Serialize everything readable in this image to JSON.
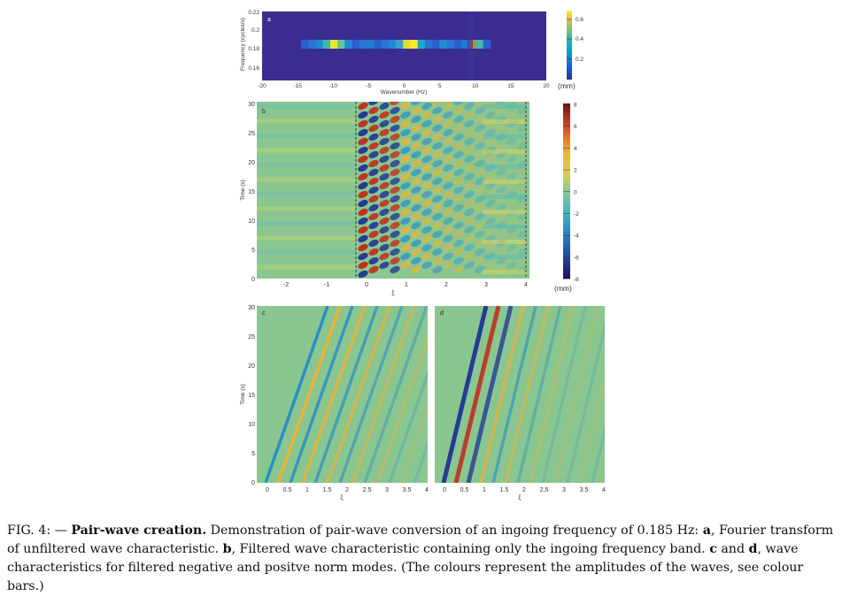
{
  "figure": {
    "panels": {
      "a": {
        "label": "a",
        "ylabel": "Frequency (cycles/s)",
        "xlabel": "Wavenumber (Hz)",
        "xticks": [
          "-20",
          "-15",
          "-10",
          "-5",
          "0",
          "5",
          "10",
          "15",
          "20"
        ],
        "yticks": [
          "0.22",
          "0.2",
          "0.18",
          "0.16"
        ],
        "colorbar": {
          "ticks": [
            "0.6",
            "0.4",
            "0.2"
          ],
          "unit": "(mm)"
        }
      },
      "b": {
        "label": "b",
        "ylabel": "Time (s)",
        "xlabel": "ξ",
        "xticks": [
          "-2",
          "-1",
          "0",
          "1",
          "2",
          "3",
          "4"
        ],
        "yticks": [
          "30",
          "25",
          "20",
          "15",
          "10",
          "5",
          "0"
        ],
        "colorbar": {
          "ticks": [
            "8",
            "6",
            "4",
            "2",
            "0",
            "-2",
            "-4",
            "-6",
            "-8"
          ],
          "unit": "(mm)"
        }
      },
      "c": {
        "label": "c",
        "ylabel": "Time (s)",
        "xlabel": "ξ",
        "xticks": [
          "0",
          "0.5",
          "1",
          "1.5",
          "2",
          "2.5",
          "3",
          "3.5",
          "4"
        ],
        "yticks": [
          "30",
          "25",
          "20",
          "15",
          "10",
          "5",
          "0"
        ]
      },
      "d": {
        "label": "d",
        "xlabel": "ξ",
        "xticks": [
          "0",
          "0.5",
          "1",
          "1.5",
          "2",
          "2.5",
          "3",
          "3.5",
          "4"
        ]
      }
    }
  },
  "caption": {
    "prefix": "FIG. 4: — ",
    "title": "Pair-wave creation.",
    "s1": " Demonstration of pair-wave conversion of an ingoing frequency of 0.185 Hz: ",
    "a": "a",
    "s2": ", Fourier transform of unfiltered wave characteristic. ",
    "b": "b",
    "s3": ", Filtered wave characteristic containing only the ingoing frequency band. ",
    "c": "c",
    "s4": " and ",
    "d": "d",
    "s5": ", wave characteristics for filtered negative and positve norm modes. (The colours represent the amplitudes of the waves, see colour bars.)"
  },
  "colors": {
    "background": "#ffffff",
    "text": "#111111"
  }
}
